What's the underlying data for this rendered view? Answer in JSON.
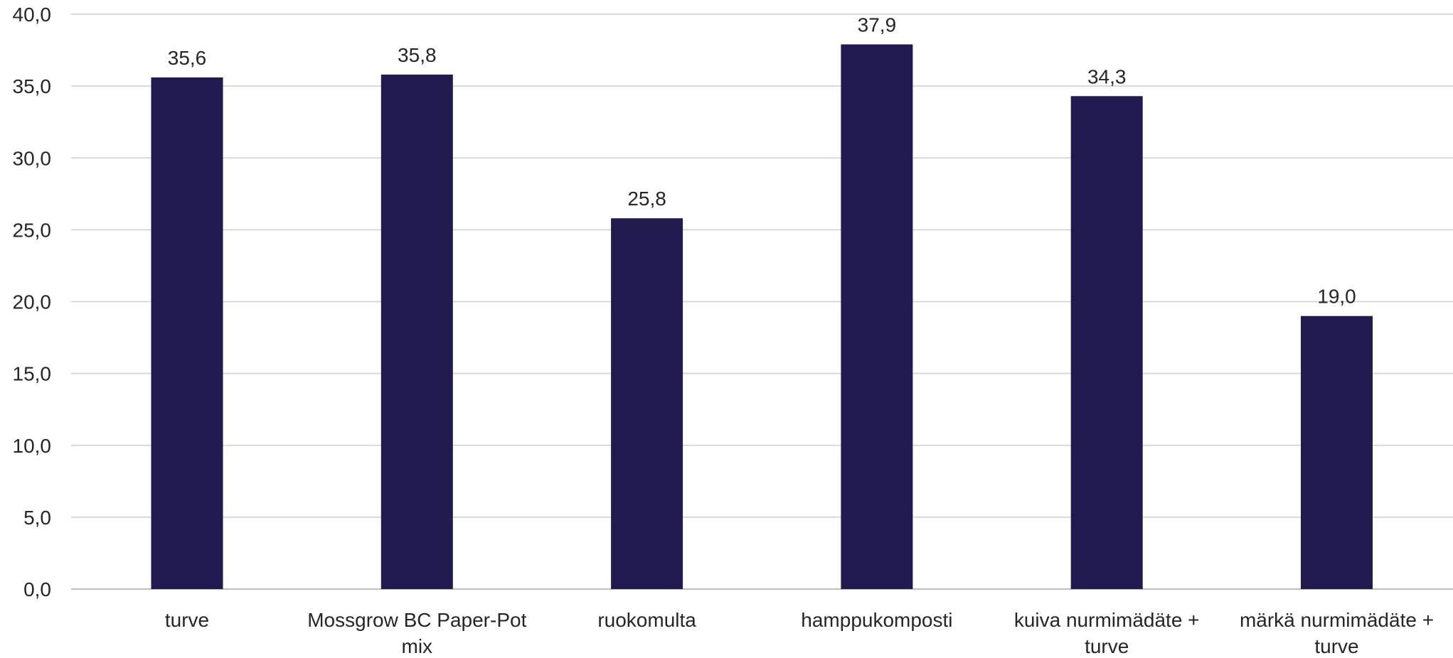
{
  "chart_data": {
    "type": "bar",
    "categories": [
      [
        "turve"
      ],
      [
        "Mossgrow BC Paper-Pot",
        "mix"
      ],
      [
        "ruokomulta"
      ],
      [
        "hamppukomposti"
      ],
      [
        "kuiva nurmimädäte +",
        "turve"
      ],
      [
        "märkä nurmimädäte +",
        "turve"
      ]
    ],
    "values": [
      35.6,
      35.8,
      25.8,
      37.9,
      34.3,
      19.0
    ],
    "data_labels": [
      "35,6",
      "35,8",
      "25,8",
      "37,9",
      "34,3",
      "19,0"
    ],
    "ylim": [
      0,
      40
    ],
    "yticks": [
      0,
      5,
      10,
      15,
      20,
      25,
      30,
      35,
      40
    ],
    "ytick_labels": [
      "0,0",
      "5,0",
      "10,0",
      "15,0",
      "20,0",
      "25,0",
      "30,0",
      "35,0",
      "40,0"
    ],
    "grid": true,
    "bar_color": "#211A4F",
    "title": "",
    "xlabel": "",
    "ylabel": ""
  }
}
